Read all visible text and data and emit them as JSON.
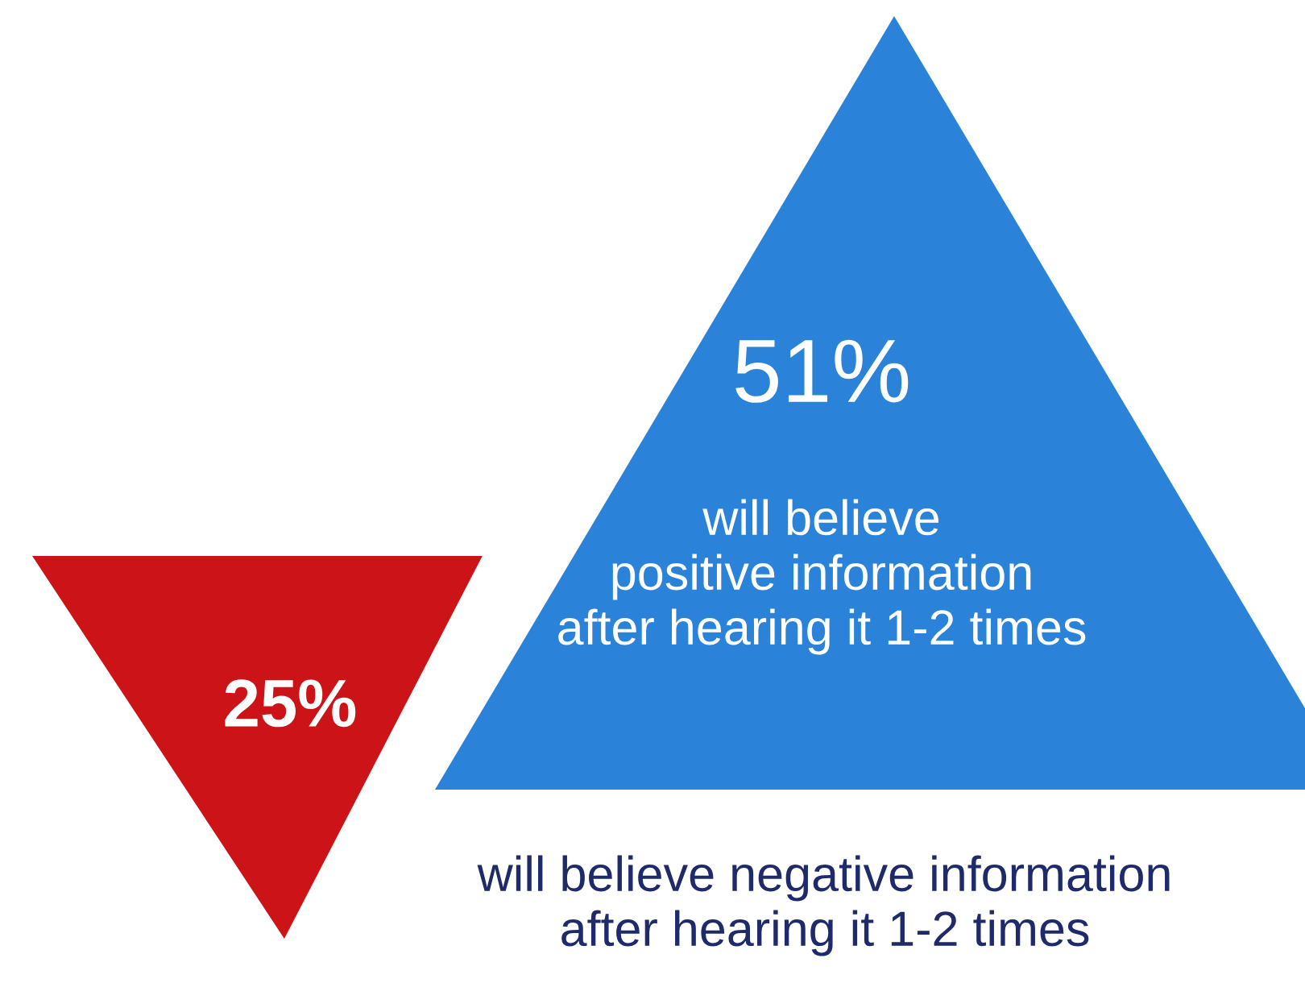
{
  "chart_data": {
    "type": "other",
    "categories": [
      "will believe\npositive information\nafter hearing it 1-2 times",
      "will believe negative information\nafter hearing it 1-2 times"
    ],
    "values": [
      51,
      25
    ],
    "value_labels": [
      "51%",
      "25%"
    ],
    "colors": [
      "#2a83d8",
      "#cc1418"
    ]
  }
}
